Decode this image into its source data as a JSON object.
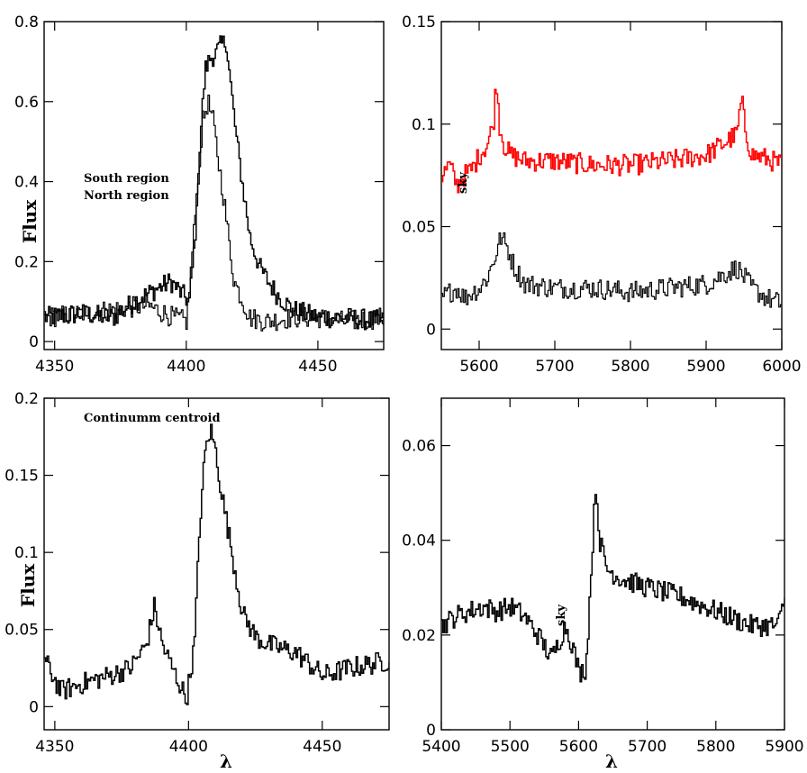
{
  "chart_data": [
    {
      "panel": "top-left",
      "type": "line",
      "ylabel": "Flux",
      "xlabel": "",
      "xlim": [
        4346,
        4475
      ],
      "ylim": [
        -0.02,
        0.8
      ],
      "xticks": [
        4350,
        4400,
        4450
      ],
      "yticks": [
        0,
        0.2,
        0.4,
        0.6,
        0.8
      ],
      "xtick_labels": [
        "4350",
        "4400",
        "4450"
      ],
      "ytick_labels": [
        "0",
        "0.2",
        "0.4",
        "0.6",
        "0.8"
      ],
      "annotations": [
        "South region",
        "North region"
      ],
      "series": [
        {
          "color": "#000000",
          "x": [
            4346,
            4360,
            4372,
            4380,
            4388,
            4394,
            4398,
            4401,
            4403,
            4405,
            4407,
            4409,
            4411,
            4413,
            4415,
            4417,
            4419,
            4421,
            4424,
            4428,
            4434,
            4440,
            4450,
            4460,
            4475
          ],
          "y": [
            0.06,
            0.07,
            0.06,
            0.1,
            0.13,
            0.15,
            0.12,
            0.1,
            0.25,
            0.5,
            0.68,
            0.71,
            0.72,
            0.74,
            0.75,
            0.62,
            0.5,
            0.4,
            0.26,
            0.18,
            0.12,
            0.08,
            0.06,
            0.06,
            0.05
          ]
        },
        {
          "color": "#000000",
          "x": [
            4346,
            4360,
            4372,
            4385,
            4395,
            4400,
            4403,
            4406,
            4408,
            4410,
            4412,
            4414,
            4416,
            4418,
            4420,
            4424,
            4430,
            4440,
            4450,
            4460,
            4475
          ],
          "y": [
            0.06,
            0.07,
            0.08,
            0.09,
            0.06,
            0.05,
            0.3,
            0.55,
            0.6,
            0.55,
            0.45,
            0.36,
            0.25,
            0.15,
            0.12,
            0.06,
            0.05,
            0.06,
            0.06,
            0.05,
            0.06
          ]
        }
      ]
    },
    {
      "panel": "top-right",
      "type": "line",
      "xlabel": "",
      "ylabel": "",
      "xlim": [
        5550,
        6000
      ],
      "ylim": [
        -0.01,
        0.15
      ],
      "xticks": [
        5600,
        5700,
        5800,
        5900,
        6000
      ],
      "yticks": [
        0,
        0.05,
        0.1,
        0.15
      ],
      "xtick_labels": [
        "5600",
        "5700",
        "5800",
        "5900",
        "6000"
      ],
      "ytick_labels": [
        "0",
        "0.05",
        "0.1",
        "0.15"
      ],
      "annotations": [
        "sky"
      ],
      "series": [
        {
          "color": "#ff0000",
          "x": [
            5550,
            5560,
            5570,
            5580,
            5590,
            5600,
            5610,
            5618,
            5622,
            5626,
            5632,
            5640,
            5660,
            5700,
            5750,
            5800,
            5850,
            5900,
            5940,
            5946,
            5952,
            5960,
            5980,
            6000
          ],
          "y": [
            0.075,
            0.08,
            0.07,
            0.075,
            0.078,
            0.085,
            0.09,
            0.1,
            0.122,
            0.1,
            0.09,
            0.085,
            0.082,
            0.082,
            0.08,
            0.08,
            0.082,
            0.085,
            0.095,
            0.112,
            0.095,
            0.085,
            0.083,
            0.08
          ]
        },
        {
          "color": "#000000",
          "x": [
            5550,
            5560,
            5570,
            5580,
            5590,
            5600,
            5610,
            5620,
            5628,
            5636,
            5646,
            5660,
            5700,
            5750,
            5800,
            5850,
            5900,
            5940,
            5950,
            5960,
            5980,
            6000
          ],
          "y": [
            0.015,
            0.018,
            0.02,
            0.015,
            0.018,
            0.02,
            0.025,
            0.035,
            0.045,
            0.04,
            0.03,
            0.022,
            0.02,
            0.02,
            0.018,
            0.02,
            0.022,
            0.03,
            0.025,
            0.02,
            0.015,
            0.012
          ]
        }
      ]
    },
    {
      "panel": "bottom-left",
      "type": "line",
      "ylabel": "Flux",
      "xlabel": "λ",
      "xlim": [
        4346,
        4475
      ],
      "ylim": [
        -0.015,
        0.2
      ],
      "xticks": [
        4350,
        4400,
        4450
      ],
      "yticks": [
        0,
        0.05,
        0.1,
        0.15,
        0.2
      ],
      "xtick_labels": [
        "4350",
        "4400",
        "4450"
      ],
      "ytick_labels": [
        "0",
        "0.05",
        "0.1",
        "0.15",
        "0.2"
      ],
      "annotations": [
        "Continumm centroid"
      ],
      "series": [
        {
          "color": "#000000",
          "x": [
            4346,
            4352,
            4360,
            4370,
            4378,
            4384,
            4387,
            4390,
            4395,
            4399,
            4402,
            4404,
            4406,
            4408,
            4410,
            4412,
            4414,
            4416,
            4418,
            4420,
            4425,
            4430,
            4440,
            4450,
            4460,
            4475
          ],
          "y": [
            0.03,
            0.01,
            0.015,
            0.02,
            0.025,
            0.04,
            0.065,
            0.04,
            0.02,
            0.005,
            0.04,
            0.12,
            0.165,
            0.18,
            0.165,
            0.14,
            0.12,
            0.1,
            0.08,
            0.06,
            0.045,
            0.04,
            0.035,
            0.02,
            0.025,
            0.03
          ]
        }
      ]
    },
    {
      "panel": "bottom-right",
      "type": "line",
      "xlabel": "λ",
      "ylabel": "",
      "xlim": [
        5400,
        5900
      ],
      "ylim": [
        0,
        0.07
      ],
      "xticks": [
        5400,
        5500,
        5600,
        5700,
        5800,
        5900
      ],
      "yticks": [
        0,
        0.02,
        0.04,
        0.06
      ],
      "xtick_labels": [
        "5400",
        "5500",
        "5600",
        "5700",
        "5800",
        "5900"
      ],
      "ytick_labels": [
        "0",
        "0.02",
        "0.04",
        "0.06"
      ],
      "annotations": [
        "sky"
      ],
      "series": [
        {
          "color": "#000000",
          "x": [
            5400,
            5420,
            5440,
            5460,
            5480,
            5500,
            5520,
            5540,
            5560,
            5580,
            5590,
            5600,
            5610,
            5618,
            5624,
            5630,
            5640,
            5660,
            5700,
            5750,
            5800,
            5850,
            5890,
            5900
          ],
          "y": [
            0.022,
            0.024,
            0.025,
            0.026,
            0.025,
            0.026,
            0.024,
            0.02,
            0.015,
            0.022,
            0.018,
            0.012,
            0.013,
            0.035,
            0.052,
            0.04,
            0.034,
            0.032,
            0.03,
            0.028,
            0.025,
            0.022,
            0.022,
            0.028
          ]
        }
      ]
    }
  ]
}
